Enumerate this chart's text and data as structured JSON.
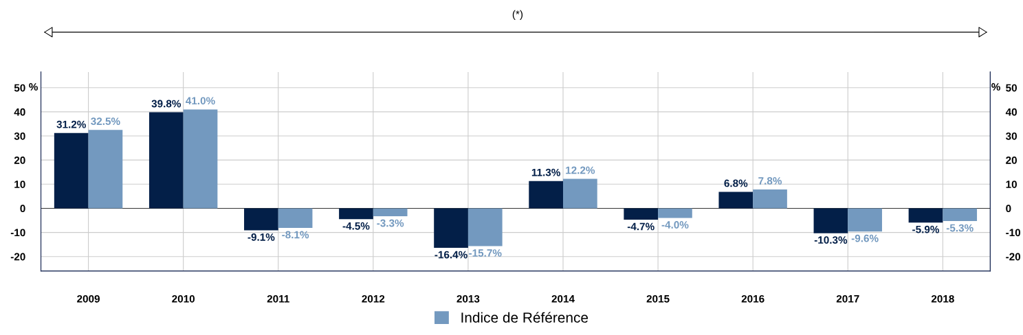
{
  "chart_data": {
    "type": "bar",
    "categories": [
      "2009",
      "2010",
      "2011",
      "2012",
      "2013",
      "2014",
      "2015",
      "2016",
      "2017",
      "2018"
    ],
    "series": [
      {
        "color": "#031f48",
        "values": [
          31.2,
          39.8,
          -9.1,
          -4.5,
          -16.4,
          11.3,
          -4.7,
          6.8,
          -10.3,
          -5.9
        ],
        "value_labels": [
          "31.2%",
          "39.8%",
          "-9.1%",
          "-4.5%",
          "-16.4%",
          "11.3%",
          "-4.7%",
          "6.8%",
          "-10.3%",
          "-5.9%"
        ]
      },
      {
        "name": "Indice de Référence",
        "color": "#7399bf",
        "values": [
          32.5,
          41.0,
          -8.1,
          -3.3,
          -15.7,
          12.2,
          -4.0,
          7.8,
          -9.6,
          -5.3
        ],
        "value_labels": [
          "32.5%",
          "41.0%",
          "-8.1%",
          "-3.3%",
          "-15.7%",
          "12.2%",
          "-4.0%",
          "7.8%",
          "-9.6%",
          "-5.3%"
        ]
      }
    ],
    "ylabel": "%",
    "y2label": "%",
    "ylim": [
      -26,
      56.5
    ],
    "yticks": [
      -20,
      -10,
      0,
      10,
      20,
      30,
      40,
      50
    ],
    "y2lim": [
      -26,
      56.5
    ],
    "y2ticks": [
      -20,
      -10,
      0,
      10,
      20,
      30,
      40,
      50
    ],
    "annotations": [
      "(*)"
    ],
    "grid": true,
    "legend": "bottom"
  }
}
